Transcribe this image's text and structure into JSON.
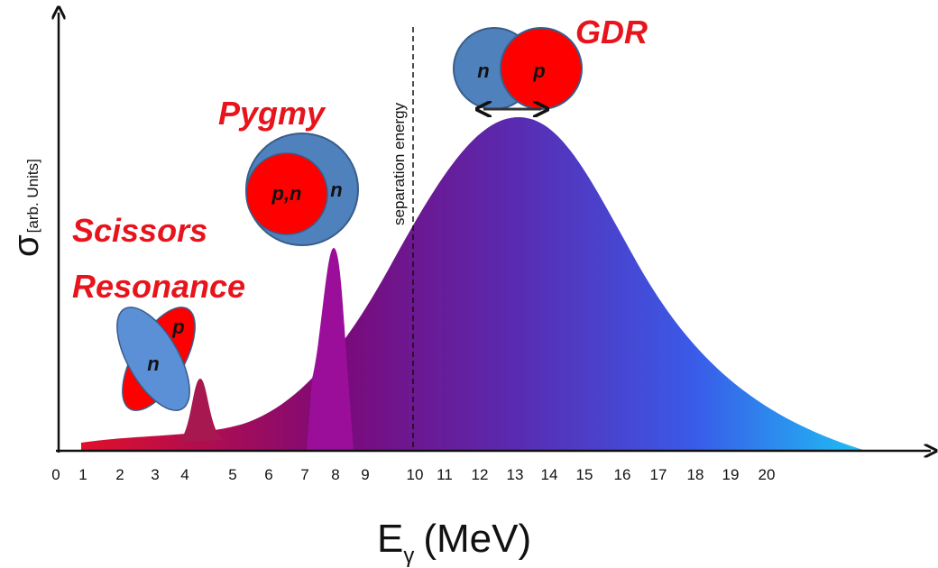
{
  "labels": {
    "scissors": "Scissors",
    "resonance": "Resonance",
    "pygmy": "Pygmy",
    "gdr": "GDR",
    "separation": "separation energy"
  },
  "nucleons": {
    "scissors_p": "p",
    "scissors_n": "n",
    "pygmy_core": "p,n",
    "pygmy_skin": "n",
    "gdr_n": "n",
    "gdr_p": "p"
  },
  "y_axis": {
    "symbol": "σ",
    "subscript": "[arb. Units]"
  },
  "x_axis": {
    "symbol": "E",
    "subscript": "γ",
    "unit": "(MeV)"
  },
  "ticks": [
    "0",
    "1",
    "2",
    "3",
    "4",
    "5",
    "6",
    "7",
    "8",
    "9",
    "10",
    "11",
    "12",
    "13",
    "14",
    "15",
    "16",
    "17",
    "18",
    "19",
    "20"
  ]
}
